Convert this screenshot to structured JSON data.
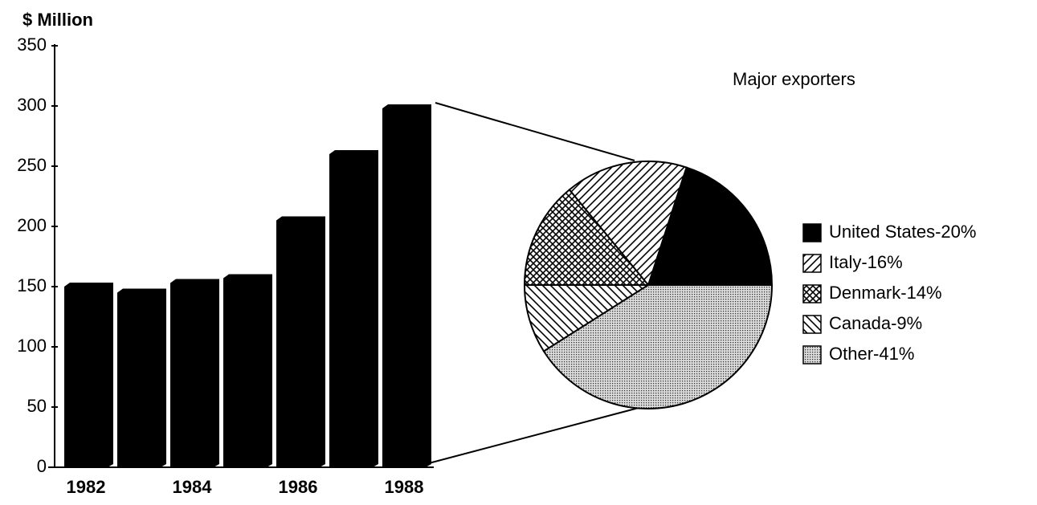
{
  "chart_data": [
    {
      "type": "bar",
      "y_label": "$ Million",
      "categories": [
        "1982",
        null,
        "1984",
        null,
        "1986",
        null,
        "1988"
      ],
      "values": [
        150,
        145,
        153,
        157,
        205,
        260,
        298
      ],
      "color": "#000000",
      "ylim": [
        0,
        350
      ],
      "yticks": [
        0,
        50,
        100,
        150,
        200,
        250,
        300,
        350
      ]
    },
    {
      "type": "pie",
      "title": "Major exporters",
      "categories": [
        "United States-20%",
        "Italy-16%",
        "Denmark-14%",
        "Canada-9%",
        "Other-41%"
      ],
      "values": [
        20,
        16,
        14,
        9,
        41
      ],
      "patterns": [
        "solid",
        "diagonal",
        "crosshatch",
        "back-diagonal",
        "dots"
      ]
    }
  ]
}
